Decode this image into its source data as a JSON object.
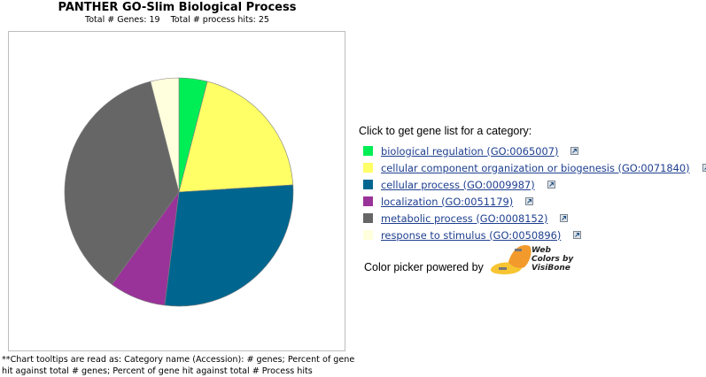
{
  "chart_data": {
    "type": "pie",
    "title": "PANTHER GO-Slim Biological Process",
    "subtitle": "Total # Genes: 19    Total # process hits: 25",
    "categories": [
      "biological regulation (GO:0065007)",
      "cellular component organization or biogenesis (GO:0071840)",
      "cellular process (GO:0009987)",
      "localization (GO:0051179)",
      "metabolic process (GO:0008152)",
      "response to stimulus (GO:0050896)"
    ],
    "values": [
      1,
      5,
      7,
      2,
      9,
      1
    ],
    "colors": [
      "#00ee55",
      "#ffff66",
      "#00668f",
      "#993399",
      "#666666",
      "#ffffdd"
    ],
    "start_angle_deg": 0,
    "direction": "clockwise"
  },
  "legend": {
    "heading": "Click to get gene list for a category:",
    "link_icon": "external-link-icon"
  },
  "footnote": "**Chart tooltips are read as: Category name (Accession): # genes; Percent of gene hit against total # genes; Percent of gene hit against total # Process hits",
  "color_picker": {
    "label": "Color picker powered by",
    "logo_text": [
      "Web",
      "Colors by",
      "VisiBone"
    ]
  }
}
